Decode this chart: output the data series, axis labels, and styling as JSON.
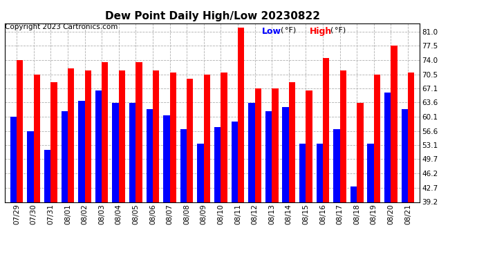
{
  "title": "Dew Point Daily High/Low 20230822",
  "copyright": "Copyright 2023 Cartronics.com",
  "legend_low": "Low",
  "legend_high": "High",
  "dates": [
    "07/29",
    "07/30",
    "07/31",
    "08/01",
    "08/02",
    "08/03",
    "08/04",
    "08/05",
    "08/06",
    "08/07",
    "08/08",
    "08/09",
    "08/10",
    "08/11",
    "08/12",
    "08/13",
    "08/14",
    "08/15",
    "08/16",
    "08/17",
    "08/18",
    "08/19",
    "08/20",
    "08/21"
  ],
  "high_values": [
    74.0,
    70.5,
    68.5,
    72.0,
    71.5,
    73.5,
    71.5,
    73.5,
    71.5,
    71.0,
    69.5,
    70.5,
    71.0,
    82.0,
    67.1,
    67.1,
    68.5,
    66.5,
    74.5,
    71.5,
    63.5,
    70.5,
    77.5,
    71.0
  ],
  "low_values": [
    60.1,
    56.6,
    52.0,
    61.5,
    64.0,
    66.5,
    63.5,
    63.5,
    62.0,
    60.5,
    57.0,
    53.5,
    57.5,
    59.0,
    63.5,
    61.5,
    62.5,
    53.5,
    53.5,
    57.0,
    43.0,
    53.5,
    66.0,
    62.0
  ],
  "bar_width": 0.38,
  "ylim": [
    39.2,
    83.0
  ],
  "ymin": 39.2,
  "yticks": [
    39.2,
    42.7,
    46.2,
    49.7,
    53.1,
    56.6,
    60.1,
    63.6,
    67.1,
    70.5,
    74.0,
    77.5,
    81.0
  ],
  "high_color": "#ff0000",
  "low_color": "#0000ff",
  "bg_color": "#ffffff",
  "grid_color": "#b0b0b0",
  "title_fontsize": 11,
  "copyright_fontsize": 7.5,
  "tick_fontsize": 7.5,
  "legend_fontsize": 9
}
